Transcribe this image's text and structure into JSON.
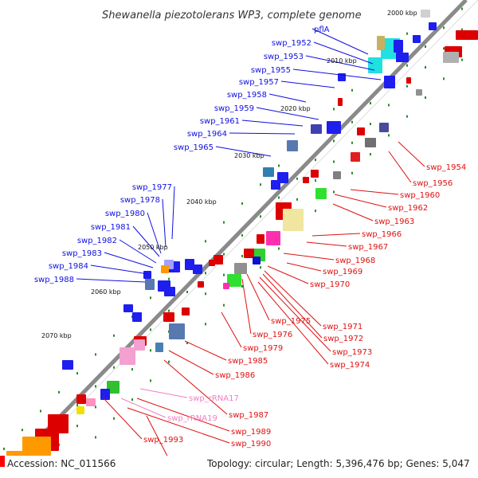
{
  "title": "Shewanella piezotolerans WP3, complete genome",
  "footer": {
    "accession": "Accession: NC_011566",
    "summary": "Topology: circular; Length: 5,396,476 bp; Genes: 5,047"
  },
  "kbp_ticks": [
    "2000 kbp",
    "2010 kbp",
    "2020 kbp",
    "2030 kbp",
    "2040 kbp",
    "2050 kbp",
    "2060 kbp",
    "2070 kbp"
  ],
  "colors": {
    "forward_label": "#1010e0",
    "reverse_label": "#e01010",
    "rna_label": "#f080c0",
    "backbone": "#8a8a8a",
    "tick": "#2a8a2a"
  },
  "forward_genes": [
    "pflA",
    "swp_1952",
    "swp_1953",
    "swp_1955",
    "swp_1957",
    "swp_1958",
    "swp_1959",
    "swp_1961",
    "swp_1964",
    "swp_1965",
    "swp_1977",
    "swp_1978",
    "swp_1980",
    "swp_1981",
    "swp_1982",
    "swp_1983",
    "swp_1984",
    "swp_1988"
  ],
  "reverse_genes": [
    "swp_1954",
    "swp_1956",
    "swp_1960",
    "swp_1962",
    "swp_1963",
    "swp_1966",
    "swp_1967",
    "swp_1968",
    "swp_1969",
    "swp_1970",
    "swp_1971",
    "swp_1972",
    "swp_1973",
    "swp_1974",
    "swp_1975",
    "swp_1976",
    "swp_1979",
    "swp_1985",
    "swp_1986",
    "swp_1987",
    "swp_1989",
    "swp_1990",
    "swp_1993",
    "murB"
  ],
  "rna_genes": [
    "swp_rRNA17",
    "swp_rRNA19"
  ]
}
